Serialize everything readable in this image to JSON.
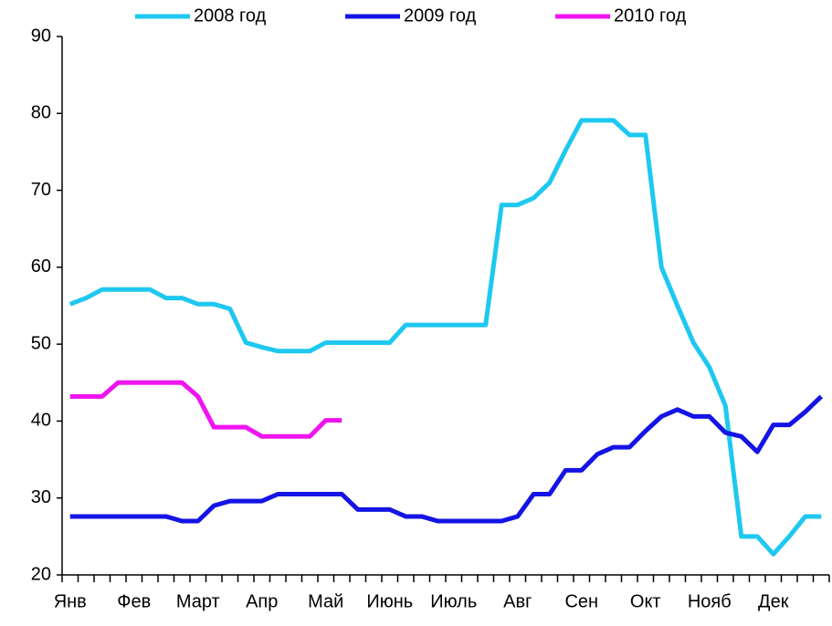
{
  "chart_data": {
    "type": "line",
    "categories": [
      "Янв",
      null,
      null,
      null,
      "Фев",
      null,
      null,
      null,
      "Март",
      null,
      null,
      null,
      "Апр",
      null,
      null,
      null,
      "Май",
      null,
      null,
      null,
      "Июнь",
      null,
      null,
      null,
      "Июль",
      null,
      null,
      null,
      "Авг",
      null,
      null,
      null,
      "Сен",
      null,
      null,
      null,
      "Окт",
      null,
      null,
      null,
      "Нояб",
      null,
      null,
      null,
      "Дек",
      null,
      null,
      null
    ],
    "series": [
      {
        "name": "2008 год",
        "color": "#1ec8f0",
        "values": [
          55.2,
          56,
          57.1,
          57.1,
          57.1,
          57.1,
          56,
          56,
          55.2,
          55.2,
          54.6,
          50.2,
          49.6,
          49.1,
          49.1,
          49.1,
          50.2,
          50.2,
          50.2,
          50.2,
          50.2,
          52.5,
          52.5,
          52.5,
          52.5,
          52.5,
          52.5,
          68.1,
          68.1,
          69,
          71,
          75.2,
          79.1,
          79.1,
          79.1,
          77.2,
          77.2,
          60,
          55,
          50.2,
          47,
          42,
          25,
          25,
          22.7,
          25,
          27.6,
          27.6
        ]
      },
      {
        "name": "2009 год",
        "color": "#1414e6",
        "values": [
          27.6,
          27.6,
          27.6,
          27.6,
          27.6,
          27.6,
          27.6,
          27,
          27,
          29,
          29.6,
          29.6,
          29.6,
          30.5,
          30.5,
          30.5,
          30.5,
          30.5,
          28.5,
          28.5,
          28.5,
          27.6,
          27.6,
          27,
          27,
          27,
          27,
          27,
          27.6,
          30.5,
          30.5,
          33.6,
          33.6,
          35.7,
          36.6,
          36.6,
          38.7,
          40.6,
          41.5,
          40.6,
          40.6,
          38.5,
          38,
          36,
          39.5,
          39.5,
          41.2,
          43.2
        ]
      },
      {
        "name": "2010 год",
        "color": "#f014f0",
        "values": [
          43.2,
          43.2,
          43.2,
          45,
          45,
          45,
          45,
          45,
          43.2,
          39.2,
          39.2,
          39.2,
          38,
          38,
          38,
          38,
          40.1,
          40.1,
          null,
          null,
          null,
          null,
          null,
          null,
          null,
          null,
          null,
          null,
          null,
          null,
          null,
          null,
          null,
          null,
          null,
          null,
          null,
          null,
          null,
          null,
          null,
          null,
          null,
          null,
          null,
          null,
          null,
          null
        ]
      }
    ],
    "ylim": [
      20,
      90
    ],
    "yticks": [
      20,
      30,
      40,
      50,
      60,
      70,
      80,
      90
    ],
    "grid": false,
    "legend": "top"
  }
}
